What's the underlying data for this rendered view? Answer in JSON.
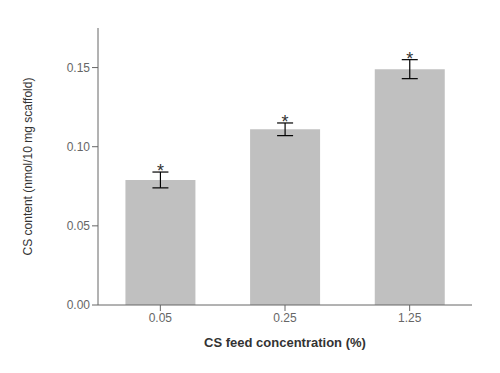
{
  "chart_data": {
    "type": "bar",
    "categories": [
      "0.05",
      "0.25",
      "1.25"
    ],
    "values": [
      0.079,
      0.111,
      0.149
    ],
    "errors": [
      0.005,
      0.004,
      0.006
    ],
    "color": "#C0C0C0",
    "xlabel": "CS feed concentration (%)",
    "ylabel": "CS content (nmol/10 mg scaffold)",
    "ylim": [
      0.0,
      0.175
    ],
    "yticks": [
      {
        "value": 0.0,
        "label": "0.00"
      },
      0.05,
      {
        "value": 0.1,
        "label": "0.10"
      },
      0.15
    ],
    "annotations": [
      "*",
      "*",
      "*"
    ],
    "grid": false
  }
}
